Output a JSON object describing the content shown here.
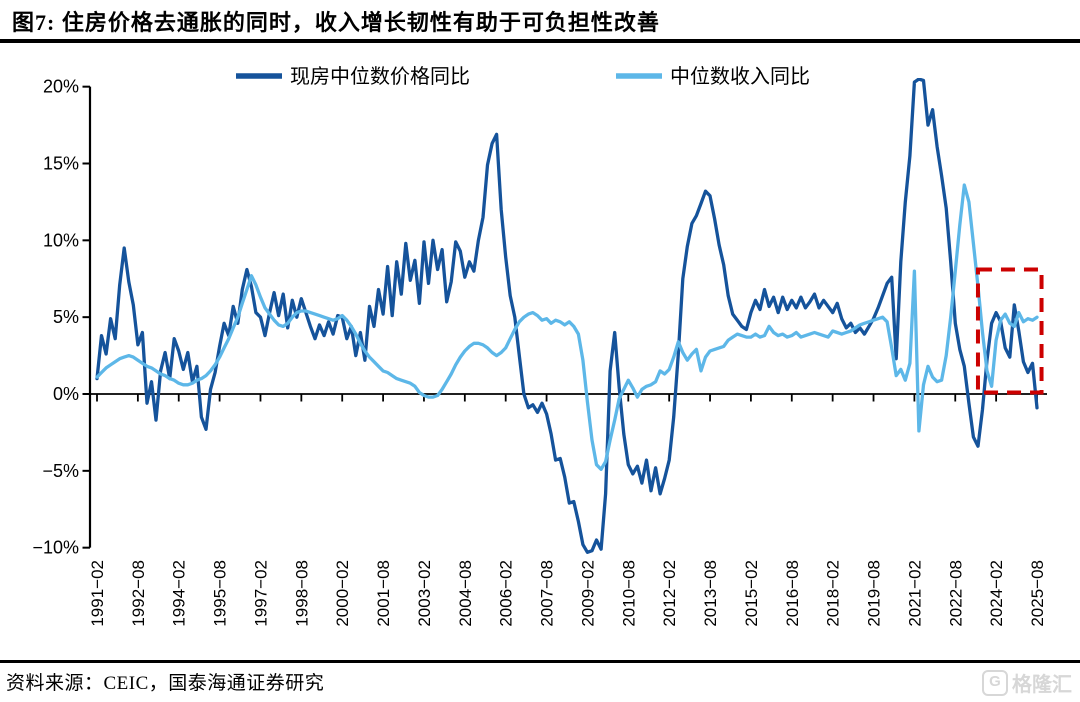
{
  "figure": {
    "title": "图7:  住房价格去通胀的同时，收入增长韧性有助于可负担性改善",
    "source": "资料来源：CEIC，国泰海通证券研究",
    "watermark": "格隆汇",
    "watermark_logo_letter": "G"
  },
  "chart_data": {
    "type": "line",
    "title": "住房价格去通胀的同时，收入增长韧性有助于可负担性改善",
    "xlabel": "",
    "ylabel": "",
    "grid": false,
    "legend_position": "top",
    "ylim": [
      -10,
      20
    ],
    "y_ticks": [
      {
        "v": 20,
        "label": "20%"
      },
      {
        "v": 15,
        "label": "15%"
      },
      {
        "v": 10,
        "label": "10%"
      },
      {
        "v": 5,
        "label": "5%"
      },
      {
        "v": 0,
        "label": "0%"
      },
      {
        "v": -5,
        "label": "−5%"
      },
      {
        "v": -10,
        "label": "−10%"
      }
    ],
    "x_start": "1991-02",
    "x_step_months": 2,
    "x_tick_labels": [
      "1991−02",
      "1992−08",
      "1994−02",
      "1995−08",
      "1997−02",
      "1998−08",
      "2000−02",
      "2001−08",
      "2003−02",
      "2004−08",
      "2006−02",
      "2007−08",
      "2009−02",
      "2010−08",
      "2012−02",
      "2013−08",
      "2015−02",
      "2016−08",
      "2018−02",
      "2019−08",
      "2021−02",
      "2022−08",
      "2024−02",
      "2025−08"
    ],
    "annotation_box": {
      "x_from": "2023-06",
      "x_to": "2025-10",
      "y_from": 0.1,
      "y_to": 8.1,
      "color": "#cc0000",
      "style": "dashed"
    },
    "series": [
      {
        "name": "现房中位数价格同比",
        "color": "#15539b",
        "values": [
          1.0,
          3.8,
          2.6,
          4.9,
          3.6,
          7.1,
          9.5,
          7.3,
          5.8,
          3.2,
          4.0,
          -0.6,
          0.8,
          -1.7,
          1.5,
          2.7,
          1.0,
          3.6,
          2.8,
          1.6,
          2.7,
          0.8,
          1.8,
          -1.5,
          -2.3,
          0.3,
          1.4,
          3.1,
          4.6,
          3.8,
          5.7,
          4.6,
          6.8,
          8.1,
          7.0,
          5.3,
          5.0,
          3.8,
          5.3,
          6.6,
          5.1,
          6.5,
          4.3,
          6.1,
          5.0,
          6.2,
          5.3,
          4.4,
          3.6,
          4.5,
          3.8,
          4.7,
          3.9,
          5.1,
          5.0,
          3.6,
          4.4,
          2.5,
          4.0,
          2.2,
          5.7,
          4.4,
          6.8,
          5.2,
          8.3,
          5.1,
          8.6,
          6.5,
          9.8,
          7.4,
          8.7,
          5.9,
          9.9,
          7.2,
          10.0,
          8.1,
          9.4,
          6.0,
          7.3,
          9.9,
          9.3,
          7.6,
          8.6,
          8.0,
          10.0,
          11.5,
          14.9,
          16.3,
          16.9,
          12.0,
          8.9,
          6.4,
          5.0,
          2.5,
          0.0,
          -0.9,
          -0.7,
          -1.2,
          -0.6,
          -1.3,
          -2.6,
          -4.3,
          -4.2,
          -5.4,
          -7.1,
          -7.0,
          -8.3,
          -9.8,
          -10.3,
          -10.2,
          -9.5,
          -10.1,
          -6.5,
          1.5,
          4.0,
          0.4,
          -2.6,
          -4.6,
          -5.2,
          -4.7,
          -5.8,
          -4.3,
          -6.3,
          -4.8,
          -6.5,
          -5.5,
          -4.3,
          -1.5,
          2.6,
          7.5,
          9.6,
          11.1,
          11.6,
          12.4,
          13.2,
          12.9,
          11.4,
          9.7,
          8.4,
          6.4,
          5.2,
          4.8,
          4.4,
          4.2,
          5.3,
          6.1,
          5.5,
          6.8,
          5.7,
          6.3,
          5.3,
          6.3,
          5.5,
          6.1,
          5.6,
          6.3,
          5.6,
          6.0,
          6.5,
          5.6,
          6.1,
          5.7,
          5.3,
          5.9,
          4.9,
          4.3,
          4.6,
          4.0,
          4.3,
          3.9,
          4.4,
          4.9,
          5.6,
          6.4,
          7.2,
          7.6,
          2.3,
          8.6,
          12.5,
          15.5,
          20.3,
          20.5,
          20.4,
          17.5,
          18.5,
          16.1,
          14.2,
          12.1,
          8.6,
          4.6,
          2.9,
          1.8,
          -0.6,
          -2.8,
          -3.4,
          -1.0,
          2.2,
          4.6,
          5.3,
          4.7,
          3.0,
          2.4,
          5.8,
          4.1,
          2.1,
          1.4,
          2.0,
          -0.9
        ]
      },
      {
        "name": "中位数收入同比",
        "color": "#5db7e8",
        "values": [
          1.1,
          1.4,
          1.7,
          1.9,
          2.1,
          2.3,
          2.4,
          2.5,
          2.4,
          2.2,
          2.0,
          1.8,
          1.7,
          1.5,
          1.3,
          1.2,
          1.0,
          0.9,
          0.7,
          0.6,
          0.6,
          0.7,
          0.9,
          1.0,
          1.2,
          1.5,
          1.9,
          2.4,
          3.0,
          3.6,
          4.3,
          5.0,
          5.9,
          6.8,
          7.7,
          7.1,
          6.3,
          5.6,
          5.2,
          4.8,
          4.5,
          4.4,
          4.6,
          5.0,
          5.3,
          5.4,
          5.4,
          5.3,
          5.2,
          5.1,
          5.0,
          4.9,
          4.8,
          4.9,
          5.1,
          4.8,
          4.4,
          3.9,
          3.3,
          2.8,
          2.4,
          2.1,
          1.8,
          1.5,
          1.4,
          1.2,
          1.0,
          0.9,
          0.8,
          0.7,
          0.5,
          0.1,
          -0.1,
          -0.2,
          -0.2,
          -0.1,
          0.3,
          0.8,
          1.3,
          1.9,
          2.4,
          2.8,
          3.1,
          3.3,
          3.3,
          3.2,
          3.0,
          2.7,
          2.5,
          2.7,
          3.0,
          3.6,
          4.2,
          4.7,
          5.0,
          5.2,
          5.3,
          5.1,
          4.8,
          4.9,
          4.6,
          4.8,
          4.7,
          4.5,
          4.7,
          4.4,
          3.9,
          2.2,
          -0.5,
          -3.0,
          -4.6,
          -4.9,
          -4.4,
          -3.0,
          -1.7,
          -0.3,
          0.3,
          0.9,
          0.4,
          -0.2,
          0.3,
          0.5,
          0.6,
          0.8,
          1.5,
          1.3,
          1.6,
          2.4,
          3.4,
          2.7,
          2.2,
          2.6,
          2.9,
          1.5,
          2.4,
          2.8,
          2.9,
          3.0,
          3.1,
          3.5,
          3.7,
          3.9,
          3.8,
          3.7,
          3.7,
          3.9,
          3.7,
          3.8,
          4.4,
          4.0,
          3.8,
          3.9,
          3.7,
          3.8,
          4.0,
          3.7,
          3.8,
          3.9,
          4.0,
          3.9,
          3.8,
          3.7,
          4.1,
          4.0,
          3.9,
          4.0,
          4.1,
          4.3,
          4.5,
          4.6,
          4.7,
          4.8,
          4.9,
          5.0,
          4.7,
          3.0,
          1.2,
          1.6,
          0.9,
          2.0,
          8.0,
          -2.4,
          0.6,
          1.8,
          1.1,
          0.8,
          0.9,
          2.5,
          5.0,
          8.0,
          11.0,
          13.6,
          12.5,
          9.8,
          7.0,
          4.0,
          1.5,
          0.5,
          3.5,
          4.8,
          5.2,
          4.6,
          4.4,
          5.3,
          4.7,
          4.9,
          4.8,
          5.0
        ]
      }
    ]
  }
}
